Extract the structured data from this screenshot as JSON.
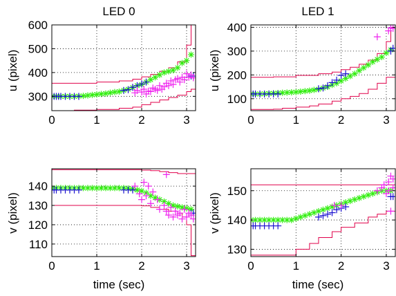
{
  "chart_data": [
    {
      "type": "line",
      "title": "LED 0",
      "xlabel": "",
      "ylabel": "u (pixel)",
      "xlim": [
        0,
        3.2
      ],
      "ylim": [
        240,
        600
      ],
      "xticks": [
        "0",
        "1",
        "2",
        "3"
      ],
      "xtick_values": [
        0,
        1,
        2,
        3
      ],
      "yticks": [
        "300",
        "400",
        "500",
        "600"
      ],
      "ytick_values": [
        300,
        400,
        500,
        600
      ],
      "grid": true,
      "series": [
        {
          "style": "line",
          "color": "#e0004a",
          "x": [
            0,
            0.5,
            1.0,
            1.5,
            1.8,
            2.0,
            2.2,
            2.4,
            2.6,
            2.8,
            3.0,
            3.1,
            3.2
          ],
          "y": [
            355,
            355,
            360,
            365,
            372,
            382,
            392,
            405,
            420,
            445,
            515,
            600,
            600
          ]
        },
        {
          "style": "line",
          "color": "#e0004a",
          "x": [
            0,
            0.5,
            1.0,
            1.5,
            1.8,
            2.0,
            2.2,
            2.4,
            2.6,
            2.8,
            3.0,
            3.1,
            3.2
          ],
          "y": [
            240,
            242,
            245,
            250,
            255,
            265,
            275,
            285,
            295,
            305,
            320,
            330,
            340
          ]
        },
        {
          "style": "star",
          "color": "#33ee11",
          "x": [
            0,
            0.1,
            0.2,
            0.3,
            0.4,
            0.5,
            0.6,
            0.7,
            0.8,
            0.9,
            1.0,
            1.1,
            1.2,
            1.3,
            1.4,
            1.5,
            1.6,
            1.7,
            1.8,
            1.9,
            2.0,
            2.1,
            2.2,
            2.3,
            2.4,
            2.5,
            2.6,
            2.7,
            2.8,
            2.9,
            3.0,
            3.1
          ],
          "y": [
            300,
            300,
            300,
            300,
            300,
            300,
            301,
            302,
            304,
            306,
            308,
            310,
            312,
            315,
            318,
            320,
            325,
            330,
            337,
            345,
            350,
            360,
            370,
            380,
            390,
            400,
            405,
            410,
            420,
            440,
            450,
            475
          ]
        },
        {
          "style": "plus",
          "color": "#1a10d0",
          "x": [
            0,
            0.05,
            0.1,
            0.15,
            0.2,
            0.3,
            0.4,
            0.5,
            0.6,
            1.6,
            1.7,
            1.8,
            1.9,
            2.0,
            2.1,
            3.1,
            3.15
          ],
          "y": [
            300,
            300,
            300,
            300,
            300,
            300,
            300,
            300,
            300,
            325,
            328,
            338,
            345,
            352,
            360,
            385,
            385
          ]
        },
        {
          "style": "plus",
          "color": "#ee22ee",
          "x": [
            1.85,
            1.9,
            2.0,
            2.05,
            2.1,
            2.15,
            2.2,
            2.25,
            2.3,
            2.35,
            2.4,
            2.45,
            2.5,
            2.55,
            2.6,
            2.65,
            2.7,
            2.75,
            2.8,
            2.85,
            2.9,
            2.95,
            3.0,
            3.05,
            3.1,
            3.15
          ],
          "y": [
            315,
            325,
            318,
            330,
            310,
            322,
            320,
            335,
            330,
            325,
            345,
            330,
            340,
            355,
            345,
            365,
            350,
            370,
            375,
            360,
            380,
            370,
            395,
            380,
            390,
            378
          ]
        }
      ]
    },
    {
      "type": "line",
      "title": "LED 1",
      "xlabel": "",
      "ylabel": "u (pixel)",
      "xlim": [
        0,
        3.2
      ],
      "ylim": [
        50,
        410
      ],
      "xticks": [
        "0",
        "1",
        "2",
        "3"
      ],
      "xtick_values": [
        0,
        1,
        2,
        3
      ],
      "yticks": [
        "100",
        "200",
        "300",
        "400"
      ],
      "ytick_values": [
        100,
        200,
        300,
        400
      ],
      "grid": true,
      "series": [
        {
          "style": "line",
          "color": "#e0004a",
          "x": [
            0,
            0.5,
            1.0,
            1.5,
            1.8,
            2.0,
            2.2,
            2.4,
            2.6,
            2.8,
            3.0,
            3.1,
            3.2
          ],
          "y": [
            190,
            192,
            198,
            205,
            212,
            222,
            232,
            245,
            262,
            290,
            340,
            400,
            410
          ]
        },
        {
          "style": "line",
          "color": "#e0004a",
          "x": [
            0,
            0.5,
            0.7,
            1.0,
            1.3,
            1.5,
            1.8,
            2.0,
            2.2,
            2.4,
            2.6,
            2.8,
            3.0,
            3.2
          ],
          "y": [
            55,
            56,
            60,
            65,
            70,
            78,
            90,
            100,
            110,
            122,
            140,
            165,
            190,
            205
          ]
        },
        {
          "style": "star",
          "color": "#33ee11",
          "x": [
            0,
            0.1,
            0.2,
            0.3,
            0.4,
            0.5,
            0.6,
            0.7,
            0.8,
            0.9,
            1.0,
            1.1,
            1.2,
            1.3,
            1.4,
            1.5,
            1.6,
            1.7,
            1.8,
            1.9,
            2.0,
            2.1,
            2.2,
            2.3,
            2.4,
            2.5,
            2.6,
            2.7,
            2.8,
            2.9,
            3.0,
            3.1
          ],
          "y": [
            120,
            120,
            120,
            121,
            122,
            123,
            124,
            125,
            126,
            127,
            128,
            130,
            132,
            134,
            137,
            140,
            145,
            150,
            158,
            165,
            175,
            185,
            195,
            205,
            218,
            230,
            242,
            255,
            265,
            275,
            292,
            305
          ]
        },
        {
          "style": "plus",
          "color": "#1a10d0",
          "x": [
            0,
            0.05,
            0.1,
            0.2,
            0.3,
            0.4,
            0.5,
            0.6,
            1.5,
            1.6,
            1.7,
            1.8,
            1.9,
            2.0,
            2.1,
            3.1,
            3.15
          ],
          "y": [
            120,
            120,
            120,
            120,
            120,
            120,
            120,
            120,
            142,
            145,
            155,
            168,
            178,
            198,
            205,
            300,
            312
          ]
        },
        {
          "style": "plus",
          "color": "#ee22ee",
          "x": [
            2.8,
            3.05,
            3.1,
            3.15
          ],
          "y": [
            360,
            385,
            398,
            395
          ]
        }
      ]
    },
    {
      "type": "line",
      "title": "",
      "xlabel": "time (sec)",
      "ylabel": "v (pixel)",
      "xlim": [
        0,
        3.2
      ],
      "ylim": [
        103.5,
        149
      ],
      "xticks": [
        "0",
        "1",
        "2",
        "3"
      ],
      "xtick_values": [
        0,
        1,
        2,
        3
      ],
      "yticks": [
        "110",
        "120",
        "130",
        "140"
      ],
      "ytick_values": [
        110,
        120,
        130,
        140
      ],
      "grid": true,
      "series": [
        {
          "style": "line",
          "color": "#e0004a",
          "x": [
            0,
            1.0,
            2.0,
            2.2,
            2.4,
            2.6,
            2.8,
            3.0,
            3.2
          ],
          "y": [
            148.5,
            148.5,
            148.3,
            148,
            147.5,
            147,
            146.5,
            146.5,
            146.5
          ]
        },
        {
          "style": "line",
          "color": "#e0004a",
          "x": [
            0,
            1.0,
            1.5,
            2.0,
            2.2,
            2.4,
            2.6,
            2.8,
            2.9,
            3.0,
            3.1,
            3.2
          ],
          "y": [
            130,
            130,
            130,
            129.8,
            129,
            128,
            127,
            126,
            124,
            120,
            104,
            103.5
          ]
        },
        {
          "style": "star",
          "color": "#33ee11",
          "x": [
            0,
            0.1,
            0.2,
            0.3,
            0.4,
            0.5,
            0.6,
            0.7,
            0.8,
            0.9,
            1.0,
            1.1,
            1.2,
            1.3,
            1.4,
            1.5,
            1.6,
            1.7,
            1.8,
            1.9,
            2.0,
            2.1,
            2.2,
            2.3,
            2.4,
            2.5,
            2.6,
            2.7,
            2.8,
            2.9,
            3.0,
            3.1
          ],
          "y": [
            139,
            139,
            139,
            139,
            139,
            139,
            139,
            139,
            139,
            139,
            139,
            139,
            139,
            139,
            139,
            139,
            139,
            138.8,
            138.5,
            138,
            137.5,
            136.5,
            135,
            134,
            133,
            132,
            131,
            130,
            129.5,
            129,
            128.5,
            128
          ]
        },
        {
          "style": "plus",
          "color": "#1a10d0",
          "x": [
            0,
            0.05,
            0.1,
            0.2,
            0.3,
            0.4,
            0.5,
            0.6,
            1.6,
            1.7,
            1.8,
            3.1,
            3.15
          ],
          "y": [
            138,
            138,
            138,
            138,
            138,
            138,
            138,
            138,
            138,
            138,
            138,
            126,
            126
          ]
        },
        {
          "style": "plus",
          "color": "#ee22ee",
          "x": [
            1.85,
            1.95,
            2.0,
            2.05,
            2.1,
            2.15,
            2.2,
            2.25,
            2.35,
            2.4,
            2.5,
            2.55,
            2.6,
            2.65,
            2.7,
            2.75,
            2.8,
            2.85,
            2.9,
            2.95,
            3.0,
            3.05,
            3.1,
            3.15,
            2.55
          ],
          "y": [
            140,
            136,
            133,
            142,
            135,
            140,
            131,
            137,
            133,
            128,
            130,
            127,
            125,
            129,
            124,
            127,
            125,
            126,
            123,
            128,
            124,
            126,
            125,
            123,
            146
          ]
        }
      ]
    },
    {
      "type": "line",
      "title": "",
      "xlabel": "time (sec)",
      "ylabel": "v (pixel)",
      "xlim": [
        0,
        3.2
      ],
      "ylim": [
        127.5,
        157.5
      ],
      "xticks": [
        "0",
        "1",
        "2",
        "3"
      ],
      "xtick_values": [
        0,
        1,
        2,
        3
      ],
      "yticks": [
        "130",
        "140",
        "150"
      ],
      "ytick_values": [
        130,
        140,
        150
      ],
      "grid": true,
      "series": [
        {
          "style": "line",
          "color": "#e0004a",
          "x": [
            0,
            0.5,
            1.0,
            1.5,
            2.0,
            2.3,
            2.6,
            2.9,
            3.2
          ],
          "y": [
            152,
            152,
            152,
            152,
            152,
            152,
            152,
            152,
            153
          ]
        },
        {
          "style": "line",
          "color": "#e0004a",
          "x": [
            0,
            0.5,
            0.7,
            1.0,
            1.3,
            1.5,
            1.8,
            2.0,
            2.3,
            2.6,
            2.8,
            3.0,
            3.2
          ],
          "y": [
            128,
            128,
            128,
            130,
            132,
            134,
            136,
            137.5,
            139,
            141,
            142,
            143,
            144
          ]
        },
        {
          "style": "star",
          "color": "#33ee11",
          "x": [
            0,
            0.1,
            0.2,
            0.3,
            0.4,
            0.5,
            0.6,
            0.7,
            0.8,
            0.9,
            1.0,
            1.1,
            1.2,
            1.3,
            1.4,
            1.5,
            1.6,
            1.7,
            1.8,
            1.9,
            2.0,
            2.1,
            2.2,
            2.3,
            2.4,
            2.5,
            2.6,
            2.7,
            2.8,
            2.9,
            3.0,
            3.1
          ],
          "y": [
            140,
            140,
            140,
            140,
            140,
            140,
            140,
            140,
            140,
            140,
            140.5,
            141,
            141.5,
            142,
            142.5,
            143,
            143.5,
            144,
            144.5,
            145,
            145.5,
            146,
            146.5,
            147,
            147.5,
            148,
            148.5,
            149,
            149.5,
            150,
            150,
            150
          ]
        },
        {
          "style": "plus",
          "color": "#1a10d0",
          "x": [
            0,
            0.05,
            0.1,
            0.2,
            0.3,
            0.4,
            0.5,
            0.6,
            1.5,
            1.6,
            1.7,
            1.8,
            1.9,
            2.0,
            2.1,
            3.1,
            3.15
          ],
          "y": [
            138,
            138,
            138,
            138,
            138,
            138,
            138,
            138,
            141,
            141.5,
            142,
            142.5,
            143.5,
            144,
            144.5,
            148,
            148
          ]
        },
        {
          "style": "plus",
          "color": "#ee22ee",
          "x": [
            1.85,
            2.0,
            2.8,
            2.9,
            2.95,
            3.0,
            3.05,
            3.1,
            3.15,
            3.1,
            3.05,
            3.15
          ],
          "y": [
            145,
            145,
            150,
            151,
            152,
            149,
            153,
            155,
            154,
            143,
            150,
            151
          ]
        }
      ]
    }
  ]
}
